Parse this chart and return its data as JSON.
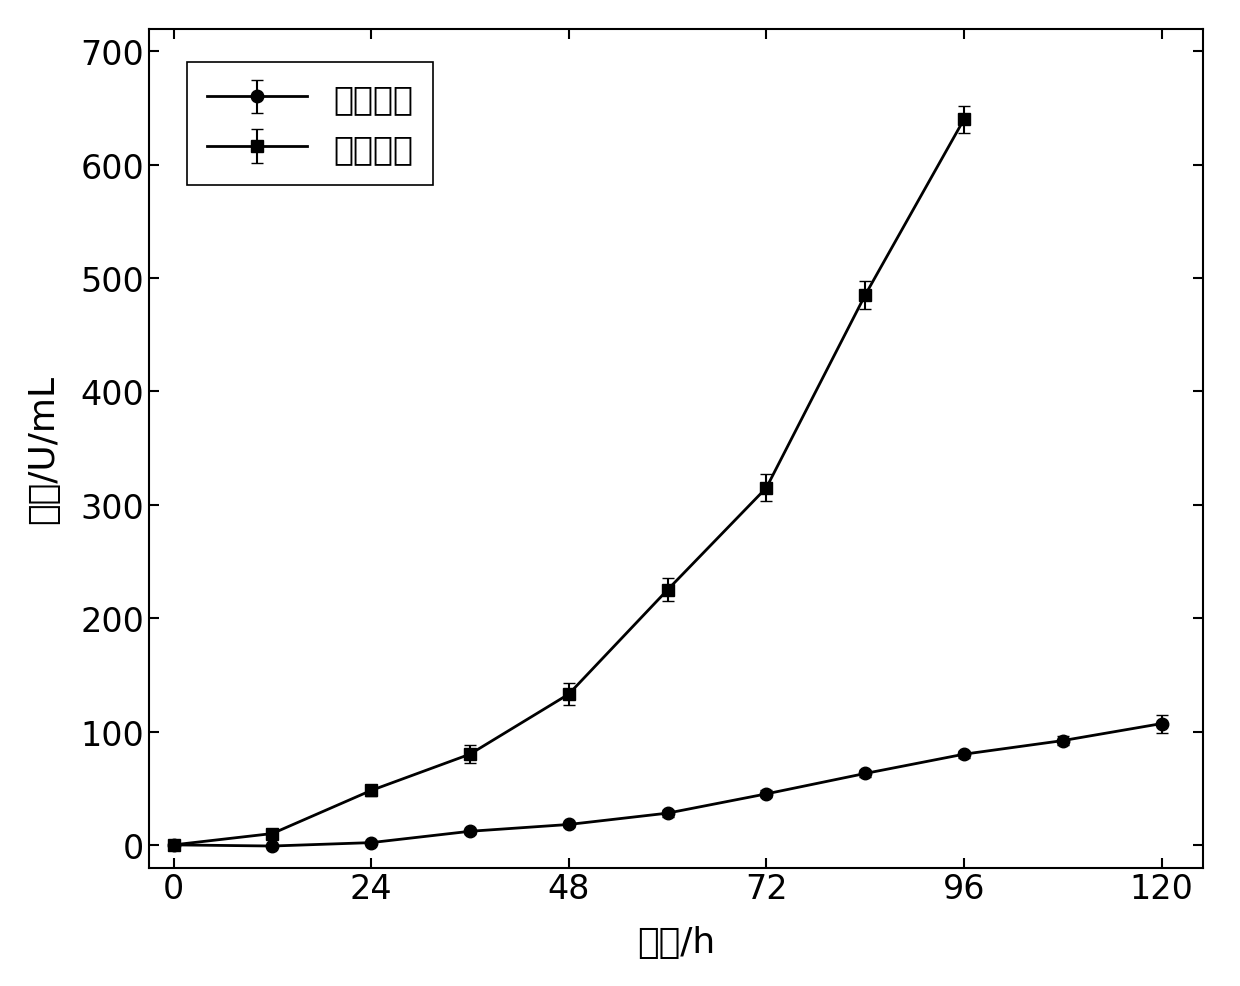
{
  "solid_x": [
    0,
    12,
    24,
    36,
    48,
    60,
    72,
    84,
    96,
    108,
    120
  ],
  "solid_y": [
    0,
    -1,
    2,
    12,
    18,
    28,
    45,
    63,
    80,
    92,
    107
  ],
  "solid_yerr": [
    1,
    1,
    1,
    2,
    2,
    3,
    3,
    3,
    3,
    4,
    8
  ],
  "liquid_x": [
    0,
    12,
    24,
    36,
    48,
    60,
    72,
    84,
    96
  ],
  "liquid_y": [
    0,
    10,
    48,
    80,
    133,
    225,
    315,
    485,
    640
  ],
  "liquid_yerr": [
    1,
    3,
    5,
    8,
    10,
    10,
    12,
    12,
    12
  ],
  "xlabel": "时间/h",
  "ylabel": "色价/U/mL",
  "legend_solid": "固体发酵",
  "legend_liquid": "液体发酵",
  "xlim": [
    -3,
    125
  ],
  "ylim": [
    -20,
    720
  ],
  "xticks": [
    0,
    24,
    48,
    72,
    96,
    120
  ],
  "yticks": [
    0,
    100,
    200,
    300,
    400,
    500,
    600,
    700
  ],
  "line_color": "#000000",
  "background_color": "#ffffff",
  "marker_solid": "o",
  "marker_liquid": "s",
  "markersize": 9,
  "linewidth": 2.0,
  "capsize": 4,
  "xlabel_fontsize": 26,
  "ylabel_fontsize": 26,
  "tick_fontsize": 24,
  "legend_fontsize": 24
}
